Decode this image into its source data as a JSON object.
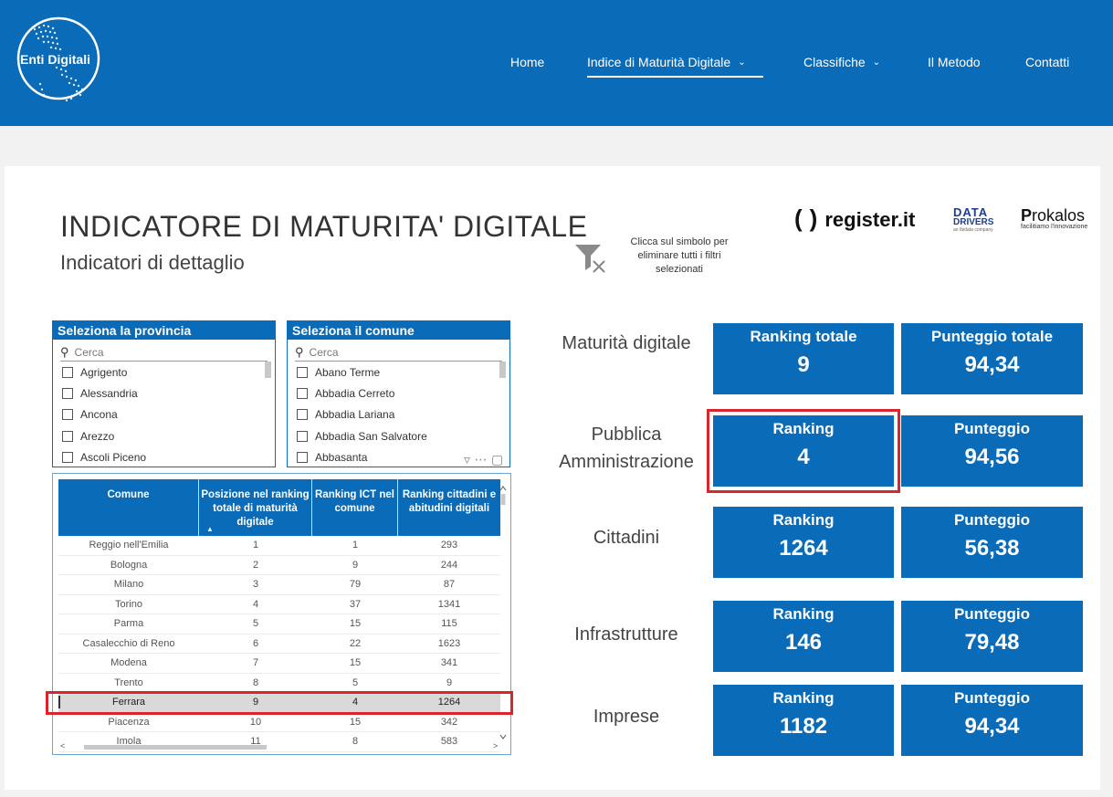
{
  "header": {
    "logo_text": "Enti Digitali",
    "nav": [
      {
        "label": "Home",
        "dropdown": false
      },
      {
        "label": "Indice di Maturità Digitale",
        "dropdown": true,
        "active": true
      },
      {
        "label": "Classifiche",
        "dropdown": true
      },
      {
        "label": "Il Metodo",
        "dropdown": false
      },
      {
        "label": "Contatti",
        "dropdown": false
      }
    ]
  },
  "report": {
    "title": "INDICATORE DI MATURITA' DIGITALE",
    "subtitle": "Indicatori di dettaglio",
    "clear_filters_note": "Clicca sul simbolo per eliminare tutti i filtri selezionati",
    "brands": {
      "register": "register.it",
      "data_drivers_line1": "DATA",
      "data_drivers_line2": "DRIVERS",
      "data_drivers_tag": "an Ibidata company",
      "prokalos_p": "P",
      "prokalos_rest": "rokalos",
      "prokalos_tag": "facilitiamo l'innovazione"
    }
  },
  "slicer_province": {
    "title": "Seleziona la provincia",
    "search_placeholder": "Cerca",
    "items": [
      "Agrigento",
      "Alessandria",
      "Ancona",
      "Arezzo",
      "Ascoli Piceno"
    ]
  },
  "slicer_comune": {
    "title": "Seleziona il comune",
    "search_placeholder": "Cerca",
    "items": [
      "Abano Terme",
      "Abbadia Cerreto",
      "Abbadia Lariana",
      "Abbadia San Salvatore",
      "Abbasanta"
    ]
  },
  "table": {
    "headers": [
      "Comune",
      "Posizione nel ranking totale di maturità digitale",
      "Ranking ICT nel comune",
      "Ranking cittadini e abitudini digitali"
    ],
    "rows": [
      [
        "Reggio nell'Emilia",
        "1",
        "1",
        "293"
      ],
      [
        "Bologna",
        "2",
        "9",
        "244"
      ],
      [
        "Milano",
        "3",
        "79",
        "87"
      ],
      [
        "Torino",
        "4",
        "37",
        "1341"
      ],
      [
        "Parma",
        "5",
        "15",
        "115"
      ],
      [
        "Casalecchio di Reno",
        "6",
        "22",
        "1623"
      ],
      [
        "Modena",
        "7",
        "15",
        "341"
      ],
      [
        "Trento",
        "8",
        "5",
        "9"
      ],
      [
        "Ferrara",
        "9",
        "4",
        "1264"
      ],
      [
        "Piacenza",
        "10",
        "15",
        "342"
      ],
      [
        "Imola",
        "11",
        "8",
        "583"
      ]
    ],
    "selected_row": 8
  },
  "kpis": [
    {
      "label": "Maturità digitale",
      "ranking_label": "Ranking totale",
      "ranking": "9",
      "score_label": "Punteggio totale",
      "score": "94,34"
    },
    {
      "label": "Pubblica Amministrazione",
      "ranking_label": "Ranking",
      "ranking": "4",
      "score_label": "Punteggio",
      "score": "94,56"
    },
    {
      "label": "Cittadini",
      "ranking_label": "Ranking",
      "ranking": "1264",
      "score_label": "Punteggio",
      "score": "56,38"
    },
    {
      "label": "Infrastrutture",
      "ranking_label": "Ranking",
      "ranking": "146",
      "score_label": "Punteggio",
      "score": "79,48"
    },
    {
      "label": "Imprese",
      "ranking_label": "Ranking",
      "ranking": "1182",
      "score_label": "Punteggio",
      "score": "94,34"
    }
  ]
}
